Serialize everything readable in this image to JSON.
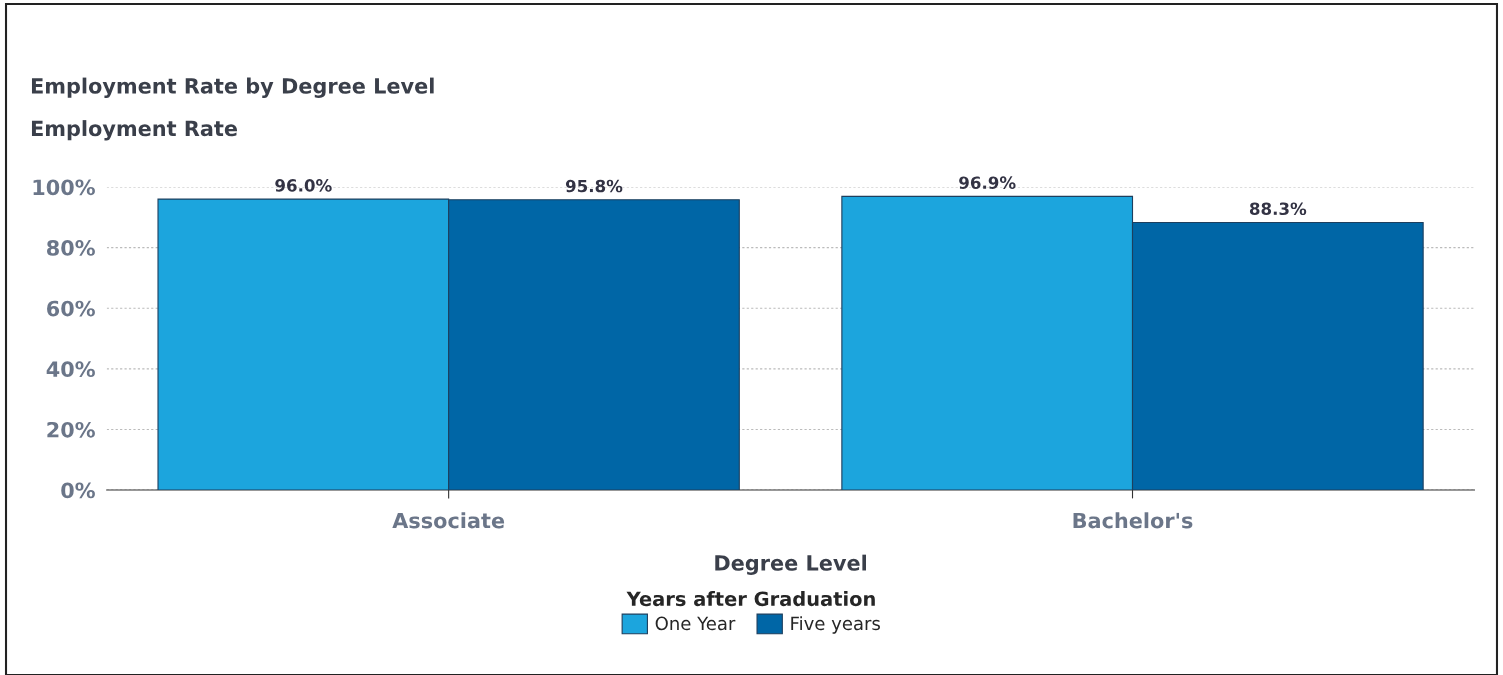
{
  "chart_data": {
    "type": "bar",
    "title": "Employment Rate by Degree Level",
    "ylabel": "Employment Rate",
    "xlabel": "Degree Level",
    "legend_title": "Years after Graduation",
    "categories": [
      "Associate",
      "Bachelor's"
    ],
    "series": [
      {
        "name": "One Year",
        "color": "#1ca5dd",
        "values": [
          96.0,
          96.9
        ],
        "value_labels": [
          "96.0%",
          "96.9%"
        ]
      },
      {
        "name": "Five years",
        "color": "#0066a6",
        "values": [
          95.8,
          88.3
        ],
        "value_labels": [
          "95.8%",
          "88.3%"
        ]
      }
    ],
    "ylim": [
      0,
      100
    ],
    "yticks": [
      {
        "value": 0,
        "label": "0%"
      },
      {
        "value": 20,
        "label": "20%"
      },
      {
        "value": 40,
        "label": "40%"
      },
      {
        "value": 60,
        "label": "60%"
      },
      {
        "value": 80,
        "label": "80%"
      },
      {
        "value": 100,
        "label": "100%"
      }
    ],
    "grid": "y",
    "legend": "bottom"
  }
}
